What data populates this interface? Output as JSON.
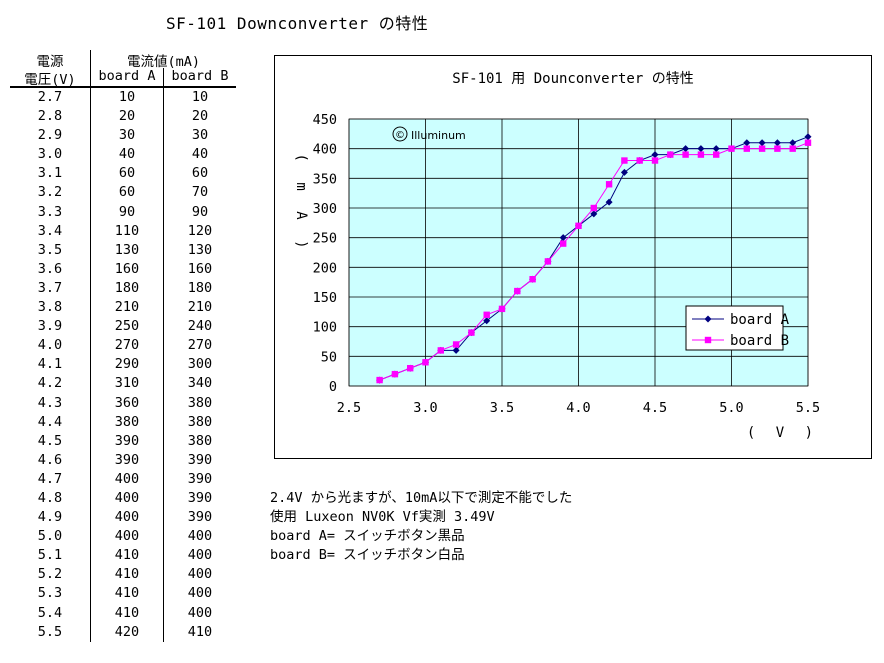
{
  "page_title": "SF-101 Downconverter の特性",
  "table": {
    "header_row1": [
      "電源",
      "電流値(mA)"
    ],
    "header_row2": [
      "電圧(V)",
      "board A",
      "board B"
    ],
    "rows": [
      [
        "2.7",
        "10",
        "10"
      ],
      [
        "2.8",
        "20",
        "20"
      ],
      [
        "2.9",
        "30",
        "30"
      ],
      [
        "3.0",
        "40",
        "40"
      ],
      [
        "3.1",
        "60",
        "60"
      ],
      [
        "3.2",
        "60",
        "70"
      ],
      [
        "3.3",
        "90",
        "90"
      ],
      [
        "3.4",
        "110",
        "120"
      ],
      [
        "3.5",
        "130",
        "130"
      ],
      [
        "3.6",
        "160",
        "160"
      ],
      [
        "3.7",
        "180",
        "180"
      ],
      [
        "3.8",
        "210",
        "210"
      ],
      [
        "3.9",
        "250",
        "240"
      ],
      [
        "4.0",
        "270",
        "270"
      ],
      [
        "4.1",
        "290",
        "300"
      ],
      [
        "4.2",
        "310",
        "340"
      ],
      [
        "4.3",
        "360",
        "380"
      ],
      [
        "4.4",
        "380",
        "380"
      ],
      [
        "4.5",
        "390",
        "380"
      ],
      [
        "4.6",
        "390",
        "390"
      ],
      [
        "4.7",
        "400",
        "390"
      ],
      [
        "4.8",
        "400",
        "390"
      ],
      [
        "4.9",
        "400",
        "390"
      ],
      [
        "5.0",
        "400",
        "400"
      ],
      [
        "5.1",
        "410",
        "400"
      ],
      [
        "5.2",
        "410",
        "400"
      ],
      [
        "5.3",
        "410",
        "400"
      ],
      [
        "5.4",
        "410",
        "400"
      ],
      [
        "5.5",
        "420",
        "410"
      ]
    ]
  },
  "notes": [
    "2.4V から光ますが、10mA以下で測定不能でした",
    "使用 Luxeon NV0K Vf実測 3.49V",
    "board A= スイッチボタン黒品",
    "board B= スイッチボタン白品"
  ],
  "chart_data": {
    "type": "line",
    "title": "SF-101 用 Dounconverter の特性",
    "watermark": "Illuminum",
    "watermark_symbol": "©",
    "xlabel": "( V )",
    "ylabel": "( m A )",
    "xlim": [
      2.5,
      5.5
    ],
    "ylim": [
      0,
      450
    ],
    "x_ticks": [
      "2.5",
      "3.0",
      "3.5",
      "4.0",
      "4.5",
      "5.0",
      "5.5"
    ],
    "y_ticks": [
      "0",
      "50",
      "100",
      "150",
      "200",
      "250",
      "300",
      "350",
      "400",
      "450"
    ],
    "grid": true,
    "legend_position": "right",
    "plot_background": "#ccffff",
    "x": [
      2.7,
      2.8,
      2.9,
      3.0,
      3.1,
      3.2,
      3.3,
      3.4,
      3.5,
      3.6,
      3.7,
      3.8,
      3.9,
      4.0,
      4.1,
      4.2,
      4.3,
      4.4,
      4.5,
      4.6,
      4.7,
      4.8,
      4.9,
      5.0,
      5.1,
      5.2,
      5.3,
      5.4,
      5.5
    ],
    "series": [
      {
        "name": "board A",
        "color": "#000080",
        "marker": "diamond",
        "values": [
          10,
          20,
          30,
          40,
          60,
          60,
          90,
          110,
          130,
          160,
          180,
          210,
          250,
          270,
          290,
          310,
          360,
          380,
          390,
          390,
          400,
          400,
          400,
          400,
          410,
          410,
          410,
          410,
          420
        ]
      },
      {
        "name": "board B",
        "color": "#ff00ff",
        "marker": "square",
        "values": [
          10,
          20,
          30,
          40,
          60,
          70,
          90,
          120,
          130,
          160,
          180,
          210,
          240,
          270,
          300,
          340,
          380,
          380,
          380,
          390,
          390,
          390,
          390,
          400,
          400,
          400,
          400,
          400,
          410
        ]
      }
    ]
  }
}
